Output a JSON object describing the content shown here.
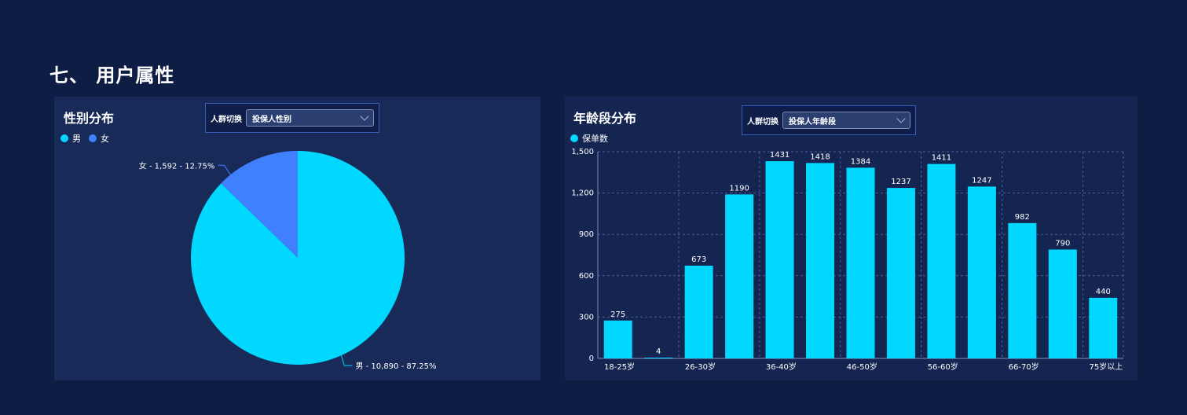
{
  "section_title": "七、 用户属性",
  "gender_panel": {
    "title": "性别分布",
    "switch_label": "人群切换",
    "switch_value": "投保人性别",
    "legend": [
      {
        "label": "男",
        "color": "#00d8ff"
      },
      {
        "label": "女",
        "color": "#4080ff"
      }
    ]
  },
  "age_panel": {
    "title": "年龄段分布",
    "switch_label": "人群切换",
    "switch_value": "投保人年龄段",
    "legend": [
      {
        "label": "保单数",
        "color": "#00d8ff"
      }
    ]
  },
  "chart_data": [
    {
      "type": "pie",
      "title": "性别分布",
      "slices": [
        {
          "name": "男",
          "value": 10890,
          "percent": 87.25,
          "label": "男 - 10,890 - 87.25%",
          "color": "#00d8ff"
        },
        {
          "name": "女",
          "value": 1592,
          "percent": 12.75,
          "label": "女 - 1,592 - 12.75%",
          "color": "#4080ff"
        }
      ]
    },
    {
      "type": "bar",
      "title": "年龄段分布",
      "series": [
        {
          "name": "保单数",
          "color": "#00d8ff",
          "values": [
            275,
            4,
            673,
            1190,
            1431,
            1418,
            1384,
            1237,
            1411,
            1247,
            982,
            790,
            440
          ]
        }
      ],
      "x_tick_labels": [
        "18-25岁",
        "",
        "26-30岁",
        "",
        "36-40岁",
        "",
        "46-50岁",
        "",
        "56-60岁",
        "",
        "66-70岁",
        "",
        "75岁以上"
      ],
      "y_ticks": [
        "0",
        "300",
        "600",
        "900",
        "1,200",
        "1,500"
      ],
      "ylim": [
        0,
        1500
      ],
      "grid": true
    }
  ]
}
